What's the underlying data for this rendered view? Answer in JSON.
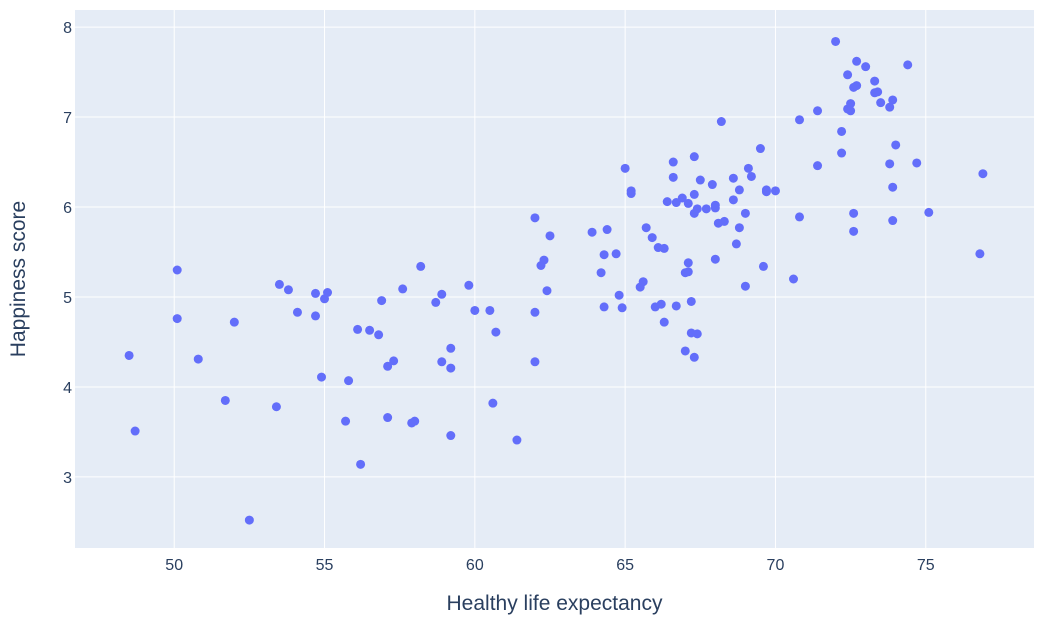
{
  "chart_data": {
    "type": "scatter",
    "title": "",
    "xlabel": "Healthy life expectancy",
    "ylabel": "Happiness score",
    "xlim": [
      46.7,
      78.6
    ],
    "ylim": [
      2.21,
      8.19
    ],
    "xticks": [
      50,
      55,
      60,
      65,
      70,
      75
    ],
    "yticks": [
      3,
      4,
      5,
      6,
      7,
      8
    ],
    "grid": true,
    "legend": "none",
    "colors": {
      "marker": "#636efa",
      "plot_bg": "#e5ecf6",
      "grid": "#ffffff",
      "text": "#2a3f5f"
    },
    "points": [
      [
        48.5,
        4.35
      ],
      [
        48.7,
        3.51
      ],
      [
        50.1,
        5.3
      ],
      [
        50.1,
        4.76
      ],
      [
        50.8,
        4.31
      ],
      [
        51.7,
        3.85
      ],
      [
        52.0,
        4.72
      ],
      [
        52.5,
        2.52
      ],
      [
        53.4,
        3.78
      ],
      [
        53.5,
        5.14
      ],
      [
        53.8,
        5.08
      ],
      [
        54.1,
        4.83
      ],
      [
        54.7,
        5.04
      ],
      [
        54.7,
        4.79
      ],
      [
        54.9,
        4.11
      ],
      [
        55.0,
        4.98
      ],
      [
        55.1,
        5.05
      ],
      [
        55.7,
        3.62
      ],
      [
        55.8,
        4.07
      ],
      [
        56.1,
        4.64
      ],
      [
        56.2,
        3.14
      ],
      [
        56.5,
        4.63
      ],
      [
        56.8,
        4.58
      ],
      [
        56.9,
        4.96
      ],
      [
        57.1,
        3.66
      ],
      [
        57.1,
        4.23
      ],
      [
        57.3,
        4.29
      ],
      [
        57.6,
        5.09
      ],
      [
        57.9,
        3.6
      ],
      [
        58.0,
        3.62
      ],
      [
        58.2,
        5.34
      ],
      [
        58.7,
        4.94
      ],
      [
        58.9,
        4.28
      ],
      [
        58.9,
        5.03
      ],
      [
        59.2,
        4.21
      ],
      [
        59.2,
        4.43
      ],
      [
        59.2,
        3.46
      ],
      [
        59.8,
        5.13
      ],
      [
        60.0,
        4.85
      ],
      [
        60.5,
        4.85
      ],
      [
        60.6,
        3.82
      ],
      [
        60.7,
        4.61
      ],
      [
        61.4,
        3.41
      ],
      [
        62.0,
        5.88
      ],
      [
        62.0,
        4.83
      ],
      [
        62.0,
        4.28
      ],
      [
        62.2,
        5.35
      ],
      [
        62.3,
        5.41
      ],
      [
        62.4,
        5.07
      ],
      [
        62.5,
        5.68
      ],
      [
        63.9,
        5.72
      ],
      [
        64.2,
        5.27
      ],
      [
        64.3,
        4.89
      ],
      [
        64.3,
        5.47
      ],
      [
        64.4,
        5.75
      ],
      [
        64.7,
        5.48
      ],
      [
        64.8,
        5.02
      ],
      [
        64.9,
        4.88
      ],
      [
        65.0,
        6.43
      ],
      [
        65.2,
        6.15
      ],
      [
        65.2,
        6.18
      ],
      [
        65.5,
        5.11
      ],
      [
        65.6,
        5.17
      ],
      [
        65.7,
        5.77
      ],
      [
        65.9,
        5.66
      ],
      [
        66.0,
        4.89
      ],
      [
        66.1,
        5.55
      ],
      [
        66.2,
        4.92
      ],
      [
        66.3,
        5.54
      ],
      [
        66.3,
        4.72
      ],
      [
        66.4,
        6.06
      ],
      [
        66.6,
        6.33
      ],
      [
        66.6,
        6.5
      ],
      [
        66.7,
        6.05
      ],
      [
        66.7,
        4.9
      ],
      [
        66.9,
        6.1
      ],
      [
        67.0,
        4.4
      ],
      [
        67.0,
        5.27
      ],
      [
        67.1,
        5.28
      ],
      [
        67.1,
        6.04
      ],
      [
        67.1,
        5.38
      ],
      [
        67.2,
        4.95
      ],
      [
        67.2,
        4.6
      ],
      [
        67.3,
        4.33
      ],
      [
        67.3,
        6.56
      ],
      [
        67.3,
        5.93
      ],
      [
        67.3,
        6.14
      ],
      [
        67.4,
        5.98
      ],
      [
        67.4,
        4.59
      ],
      [
        67.5,
        6.3
      ],
      [
        67.7,
        5.98
      ],
      [
        67.9,
        6.25
      ],
      [
        68.0,
        6.02
      ],
      [
        68.0,
        5.99
      ],
      [
        68.0,
        5.42
      ],
      [
        68.1,
        5.82
      ],
      [
        68.2,
        6.95
      ],
      [
        68.3,
        5.84
      ],
      [
        68.6,
        6.32
      ],
      [
        68.6,
        6.08
      ],
      [
        68.7,
        5.59
      ],
      [
        68.8,
        6.19
      ],
      [
        68.8,
        5.77
      ],
      [
        69.0,
        5.93
      ],
      [
        69.0,
        5.12
      ],
      [
        69.1,
        6.43
      ],
      [
        69.2,
        6.34
      ],
      [
        69.5,
        6.65
      ],
      [
        69.6,
        5.34
      ],
      [
        69.7,
        6.19
      ],
      [
        69.7,
        6.17
      ],
      [
        70.0,
        6.18
      ],
      [
        70.6,
        5.2
      ],
      [
        70.8,
        6.97
      ],
      [
        70.8,
        5.89
      ],
      [
        71.4,
        7.07
      ],
      [
        71.4,
        6.46
      ],
      [
        72.0,
        7.84
      ],
      [
        72.2,
        6.6
      ],
      [
        72.2,
        6.84
      ],
      [
        72.4,
        7.47
      ],
      [
        72.4,
        7.09
      ],
      [
        72.5,
        7.15
      ],
      [
        72.5,
        7.07
      ],
      [
        72.6,
        7.33
      ],
      [
        72.6,
        5.93
      ],
      [
        72.6,
        5.73
      ],
      [
        72.7,
        7.62
      ],
      [
        72.7,
        7.35
      ],
      [
        73.0,
        7.56
      ],
      [
        73.3,
        7.27
      ],
      [
        73.3,
        7.4
      ],
      [
        73.4,
        7.28
      ],
      [
        73.5,
        7.16
      ],
      [
        73.8,
        7.11
      ],
      [
        73.8,
        6.48
      ],
      [
        73.9,
        5.85
      ],
      [
        73.9,
        6.22
      ],
      [
        73.9,
        7.19
      ],
      [
        74.0,
        6.69
      ],
      [
        74.4,
        7.58
      ],
      [
        74.7,
        6.49
      ],
      [
        75.1,
        5.94
      ],
      [
        76.8,
        5.48
      ],
      [
        76.9,
        6.37
      ]
    ]
  }
}
